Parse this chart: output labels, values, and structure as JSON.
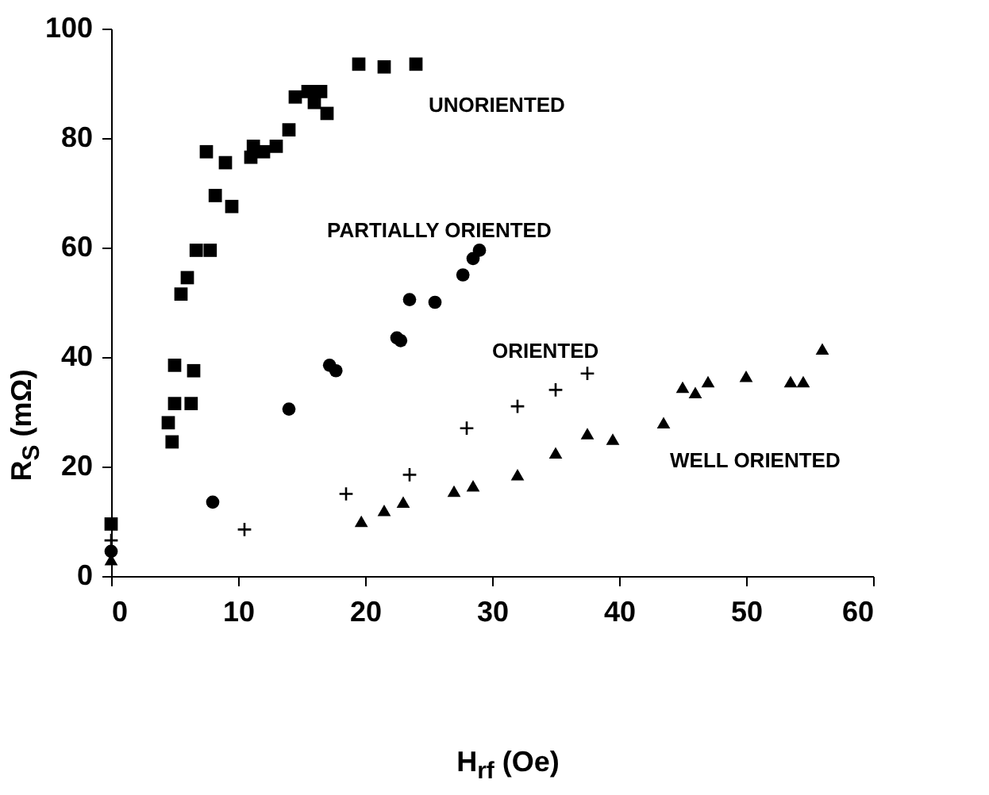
{
  "chart_data": {
    "type": "scatter",
    "xlabel": "H$_{rf}$ (Oe)",
    "ylabel": "R$_{S}$ (mΩ)",
    "xlim": [
      0,
      60
    ],
    "xticks": [
      0,
      10,
      20,
      30,
      40,
      50,
      60
    ],
    "ylim": [
      0,
      100
    ],
    "yticks": [
      0,
      20,
      40,
      60,
      80,
      100
    ],
    "grid": false,
    "series": [
      {
        "name": "UNORIENTED",
        "color": "#000000",
        "marker": "square",
        "x": [
          0,
          4.5,
          4.8,
          5,
          5,
          5.5,
          6,
          6.3,
          6.5,
          6.7,
          7.8,
          7.5,
          8.2,
          9,
          9.5,
          11,
          11.2,
          12,
          13,
          14,
          14.5,
          15.5,
          16,
          16.5,
          17,
          19.5,
          21.5,
          24
        ],
        "values": [
          9.5,
          28,
          24.5,
          31.5,
          38.5,
          51.5,
          54.5,
          31.5,
          37.5,
          59.5,
          59.5,
          77.5,
          69.5,
          75.5,
          67.5,
          76.5,
          78.5,
          77.5,
          78.5,
          81.5,
          87.5,
          88.5,
          86.5,
          88.5,
          84.5,
          93.5,
          93,
          93.5
        ]
      },
      {
        "name": "PARTIALLY ORIENTED",
        "color": "#000000",
        "marker": "circle",
        "x": [
          0,
          8,
          14,
          17.2,
          17.7,
          22.5,
          22.8,
          23.5,
          25.5,
          27.7,
          28.5,
          29
        ],
        "values": [
          4.5,
          13.5,
          30.5,
          38.5,
          37.5,
          43.5,
          43,
          50.5,
          50,
          55,
          58,
          59.5
        ]
      },
      {
        "name": "ORIENTED",
        "color": "#000000",
        "marker": "cross",
        "x": [
          0,
          10.5,
          18.5,
          23.5,
          28,
          32,
          35,
          37.5
        ],
        "values": [
          6.5,
          8.5,
          15,
          18.5,
          27,
          31,
          34,
          37
        ]
      },
      {
        "name": "WELL ORIENTED",
        "color": "#000000",
        "marker": "triangle",
        "x": [
          0,
          19.7,
          21.5,
          23,
          27,
          28.5,
          32,
          35,
          37.5,
          39.5,
          43.5,
          45,
          46,
          47,
          50,
          53.5,
          54.5,
          56
        ],
        "values": [
          3,
          10,
          12,
          13.5,
          15.5,
          16.5,
          18.5,
          22.5,
          26,
          25,
          28,
          34.5,
          33.5,
          35.5,
          36.5,
          35.5,
          35.5,
          41.5
        ]
      }
    ]
  }
}
